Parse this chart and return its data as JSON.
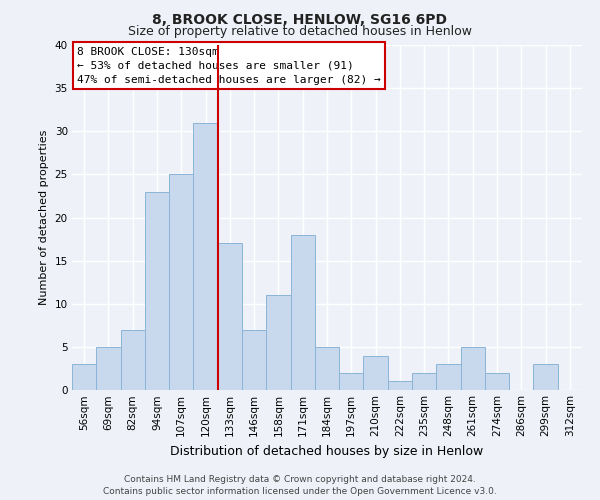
{
  "title": "8, BROOK CLOSE, HENLOW, SG16 6PD",
  "subtitle": "Size of property relative to detached houses in Henlow",
  "xlabel": "Distribution of detached houses by size in Henlow",
  "ylabel": "Number of detached properties",
  "bar_color": "#c8d9ee",
  "bar_edge_color": "#8ab4d8",
  "background_color": "#eef2f8",
  "grid_color": "#ffffff",
  "categories": [
    "56sqm",
    "69sqm",
    "82sqm",
    "94sqm",
    "107sqm",
    "120sqm",
    "133sqm",
    "146sqm",
    "158sqm",
    "171sqm",
    "184sqm",
    "197sqm",
    "210sqm",
    "222sqm",
    "235sqm",
    "248sqm",
    "261sqm",
    "274sqm",
    "286sqm",
    "299sqm",
    "312sqm"
  ],
  "values": [
    3,
    5,
    7,
    23,
    25,
    31,
    17,
    7,
    11,
    18,
    5,
    2,
    4,
    1,
    2,
    3,
    5,
    2,
    0,
    3,
    0
  ],
  "vline_color": "#cc0000",
  "annotation_title": "8 BROOK CLOSE: 130sqm",
  "annotation_line1": "← 53% of detached houses are smaller (91)",
  "annotation_line2": "47% of semi-detached houses are larger (82) →",
  "annotation_box_color": "#ffffff",
  "annotation_box_edge": "#cc0000",
  "ylim": [
    0,
    40
  ],
  "yticks": [
    0,
    5,
    10,
    15,
    20,
    25,
    30,
    35,
    40
  ],
  "footer_line1": "Contains HM Land Registry data © Crown copyright and database right 2024.",
  "footer_line2": "Contains public sector information licensed under the Open Government Licence v3.0.",
  "title_fontsize": 10,
  "subtitle_fontsize": 9,
  "ylabel_fontsize": 8,
  "xlabel_fontsize": 9,
  "tick_fontsize": 7.5,
  "annotation_fontsize": 8,
  "footer_fontsize": 6.5
}
